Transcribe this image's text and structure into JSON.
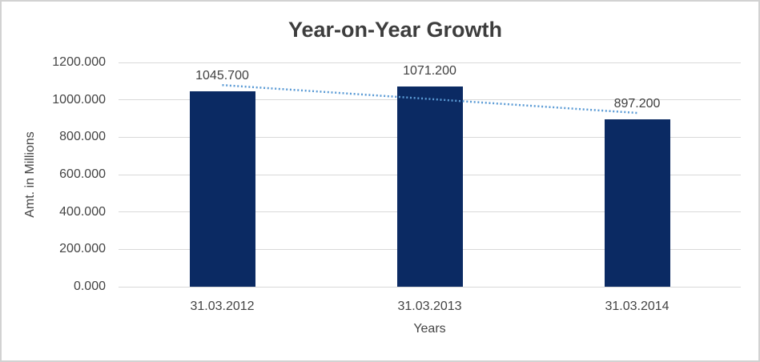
{
  "window": {
    "background_color": "#ffffff",
    "border_color": "#d2d2d2"
  },
  "chart_data": {
    "type": "bar",
    "title": "Year-on-Year Growth",
    "xlabel": "Years",
    "ylabel": "Amt. in Millions",
    "categories": [
      "31.03.2012",
      "31.03.2013",
      "31.03.2014"
    ],
    "values": [
      1045.7,
      1071.2,
      897.2
    ],
    "value_labels": [
      "1045.700",
      "1071.200",
      "897.200"
    ],
    "ylim": [
      0,
      1200
    ],
    "ytick_values": [
      0,
      200,
      400,
      600,
      800,
      1000,
      1200
    ],
    "ytick_labels": [
      "0.000",
      "200.000",
      "400.000",
      "600.000",
      "800.000",
      "1000.000",
      "1200.000"
    ],
    "grid": true,
    "legend": "none",
    "bar_color": "#0b2a63",
    "gridline_color": "#d9d9d9",
    "trendline": {
      "type": "linear",
      "style": "dotted",
      "color": "#5b9bd5",
      "start_value": 1079,
      "end_value": 930
    }
  }
}
